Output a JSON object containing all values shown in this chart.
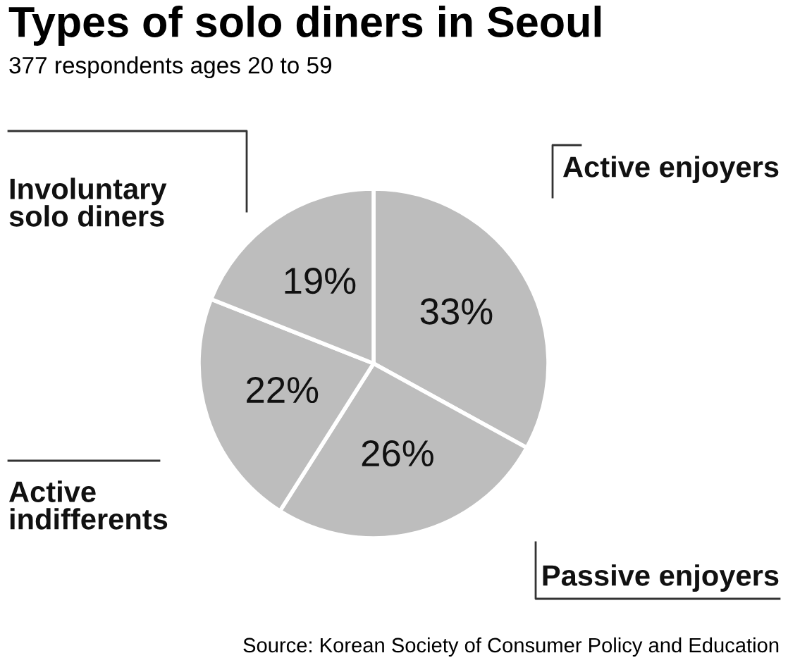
{
  "chart_data": {
    "type": "pie",
    "title": "Types of solo diners in Seoul",
    "subtitle": "377 respondents ages 20 to 59",
    "categories": [
      "Active enjoyers",
      "Passive enjoyers",
      "Active\nindifferents",
      "Involuntary\nsolo diners"
    ],
    "values": [
      33,
      26,
      22,
      19
    ],
    "value_labels": [
      "33%",
      "26%",
      "22%",
      "19%"
    ],
    "colors": [
      "#bdbdbd",
      "#bdbdbd",
      "#bdbdbd",
      "#bdbdbd"
    ],
    "annotations": [
      "Source: Korean Society of Consumer Policy and Education"
    ]
  }
}
